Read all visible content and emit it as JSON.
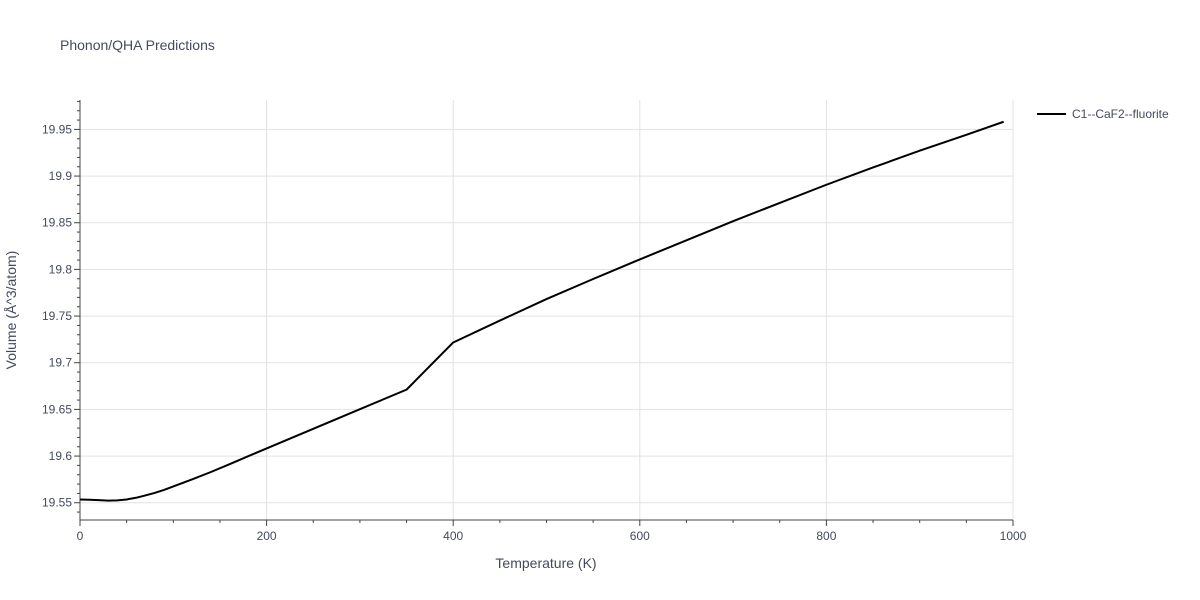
{
  "chart_data": {
    "type": "line",
    "title": "Phonon/QHA Predictions",
    "xlabel": "Temperature (K)",
    "ylabel": "Volume (Å^3/atom)",
    "xlim": [
      0,
      1000
    ],
    "ylim": [
      19.5315,
      19.9815
    ],
    "x_ticks": [
      0,
      200,
      400,
      600,
      800,
      1000
    ],
    "x_tick_labels": [
      "0",
      "200",
      "400",
      "600",
      "800",
      "1000"
    ],
    "y_ticks": [
      19.55,
      19.6,
      19.65,
      19.7,
      19.75,
      19.8,
      19.85,
      19.9,
      19.95
    ],
    "y_tick_labels": [
      "19.55",
      "19.6",
      "19.65",
      "19.7",
      "19.75",
      "19.8",
      "19.85",
      "19.9",
      "19.95"
    ],
    "grid": true,
    "legend_position": "top-right",
    "series": [
      {
        "name": "C1--CaF2--fluorite",
        "color": "#000000",
        "x": [
          0,
          10,
          20,
          30,
          40,
          50,
          60,
          70,
          80,
          90,
          100,
          120,
          140,
          160,
          180,
          200,
          250,
          300,
          350,
          400,
          450,
          500,
          550,
          600,
          650,
          700,
          750,
          800,
          850,
          900,
          950,
          990
        ],
        "y": [
          19.5535,
          19.5532,
          19.5528,
          19.5523,
          19.5525,
          19.5535,
          19.5553,
          19.5578,
          19.5605,
          19.5637,
          19.5675,
          19.575,
          19.5828,
          19.5912,
          19.5997,
          19.6082,
          19.6292,
          19.6502,
          19.6712,
          19.7217,
          19.7452,
          19.7682,
          19.7897,
          19.8107,
          19.8312,
          19.8517,
          19.8712,
          19.8907,
          19.9092,
          19.9272,
          19.9442,
          19.9582
        ]
      }
    ]
  }
}
